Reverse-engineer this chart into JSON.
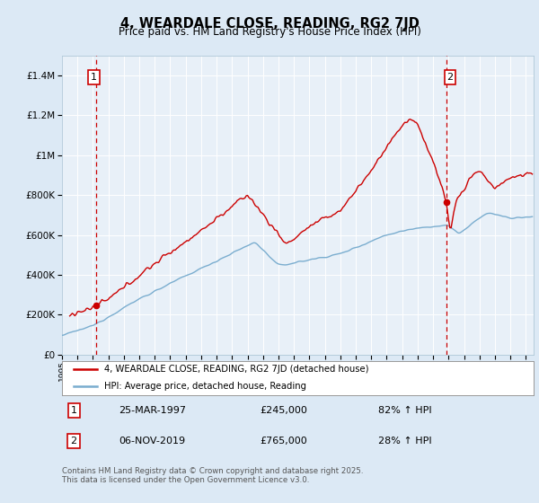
{
  "title": "4, WEARDALE CLOSE, READING, RG2 7JD",
  "subtitle": "Price paid vs. HM Land Registry's House Price Index (HPI)",
  "legend_line1": "4, WEARDALE CLOSE, READING, RG2 7JD (detached house)",
  "legend_line2": "HPI: Average price, detached house, Reading",
  "annotation1_date": "25-MAR-1997",
  "annotation1_price": "£245,000",
  "annotation1_hpi": "82% ↑ HPI",
  "annotation2_date": "06-NOV-2019",
  "annotation2_price": "£765,000",
  "annotation2_hpi": "28% ↑ HPI",
  "footer": "Contains HM Land Registry data © Crown copyright and database right 2025.\nThis data is licensed under the Open Government Licence v3.0.",
  "price_color": "#cc0000",
  "hpi_color": "#7aadcf",
  "background_color": "#dce9f5",
  "plot_bg_color": "#e8f0f8",
  "sale1_x": 1997.22,
  "sale2_x": 2019.85,
  "sale1_y": 245000,
  "sale2_y": 765000,
  "ylim": [
    0,
    1500000
  ],
  "xlim_start": 1995.0,
  "xlim_end": 2025.5
}
